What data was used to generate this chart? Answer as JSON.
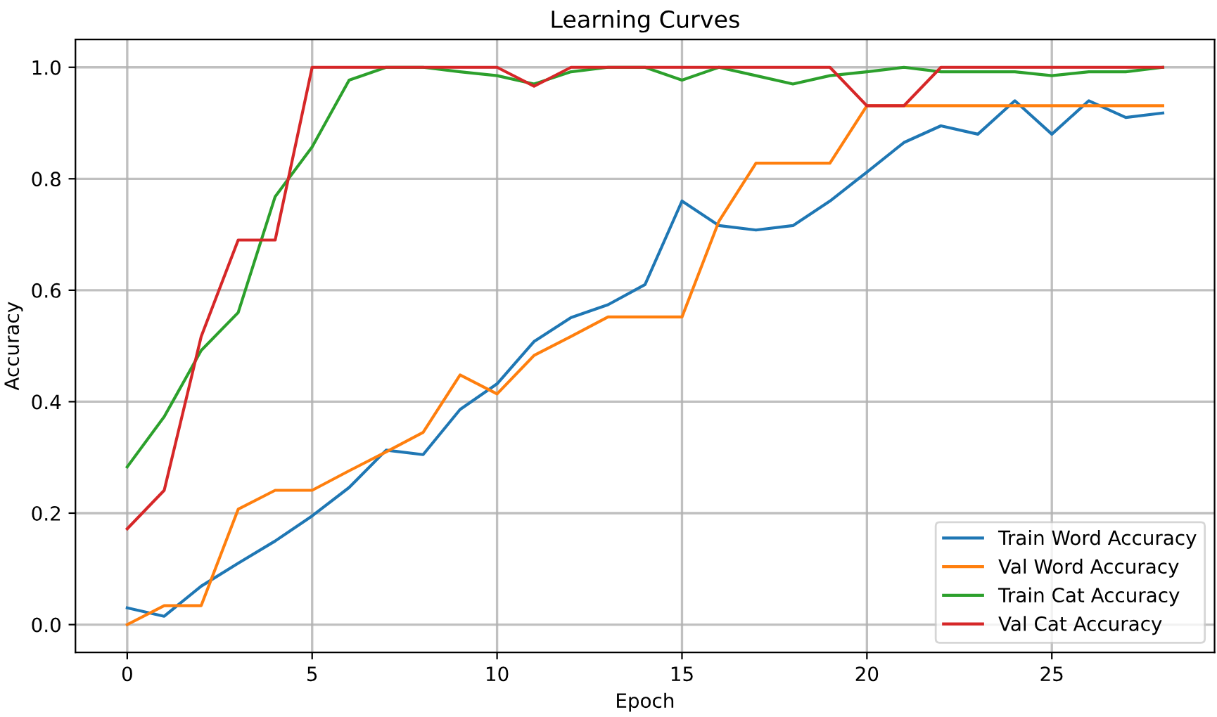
{
  "chart_data": {
    "type": "line",
    "title": "Learning Curves",
    "xlabel": "Epoch",
    "ylabel": "Accuracy",
    "x": [
      0,
      1,
      2,
      3,
      4,
      5,
      6,
      7,
      8,
      9,
      10,
      11,
      12,
      13,
      14,
      15,
      16,
      17,
      18,
      19,
      20,
      21,
      22,
      23,
      24,
      25,
      26,
      27,
      28
    ],
    "series": [
      {
        "name": "Train Word Accuracy",
        "color": "#1f77b4",
        "values": [
          0.03,
          0.015,
          0.069,
          0.11,
          0.15,
          0.195,
          0.246,
          0.313,
          0.305,
          0.386,
          0.432,
          0.508,
          0.551,
          0.574,
          0.61,
          0.76,
          0.716,
          0.708,
          0.716,
          0.76,
          0.812,
          0.865,
          0.895,
          0.88,
          0.94,
          0.88,
          0.94,
          0.91,
          0.918
        ]
      },
      {
        "name": "Val Word Accuracy",
        "color": "#ff7f0e",
        "values": [
          0.0,
          0.034,
          0.034,
          0.207,
          0.241,
          0.241,
          0.276,
          0.31,
          0.345,
          0.448,
          0.414,
          0.483,
          0.517,
          0.552,
          0.552,
          0.552,
          0.724,
          0.828,
          0.828,
          0.828,
          0.931,
          0.931,
          0.931,
          0.931,
          0.931,
          0.931,
          0.931,
          0.931,
          0.931
        ]
      },
      {
        "name": "Train Cat Accuracy",
        "color": "#2ca02c",
        "values": [
          0.283,
          0.373,
          0.492,
          0.56,
          0.768,
          0.857,
          0.977,
          1.0,
          1.0,
          0.992,
          0.985,
          0.97,
          0.992,
          1.0,
          1.0,
          0.977,
          1.0,
          0.985,
          0.97,
          0.985,
          0.992,
          1.0,
          0.992,
          0.992,
          0.992,
          0.985,
          0.992,
          0.992,
          1.0
        ]
      },
      {
        "name": "Val Cat Accuracy",
        "color": "#d62728",
        "values": [
          0.172,
          0.241,
          0.517,
          0.69,
          0.69,
          1.0,
          1.0,
          1.0,
          1.0,
          1.0,
          1.0,
          0.966,
          1.0,
          1.0,
          1.0,
          1.0,
          1.0,
          1.0,
          1.0,
          1.0,
          0.931,
          0.931,
          1.0,
          1.0,
          1.0,
          1.0,
          1.0,
          1.0,
          1.0
        ]
      }
    ],
    "xlim": [
      -1.4,
      29.4
    ],
    "ylim": [
      -0.05,
      1.05
    ],
    "xticks": [
      0,
      5,
      10,
      15,
      20,
      25
    ],
    "yticks": [
      {
        "value": 0,
        "label": "0.0"
      },
      {
        "value": 0.2,
        "label": "0.2"
      },
      {
        "value": 0.4,
        "label": "0.4"
      },
      {
        "value": 0.6,
        "label": "0.6"
      },
      {
        "value": 0.8,
        "label": "0.8"
      },
      {
        "value": 1,
        "label": "1.0"
      }
    ],
    "grid": true,
    "legend": "lower right"
  }
}
